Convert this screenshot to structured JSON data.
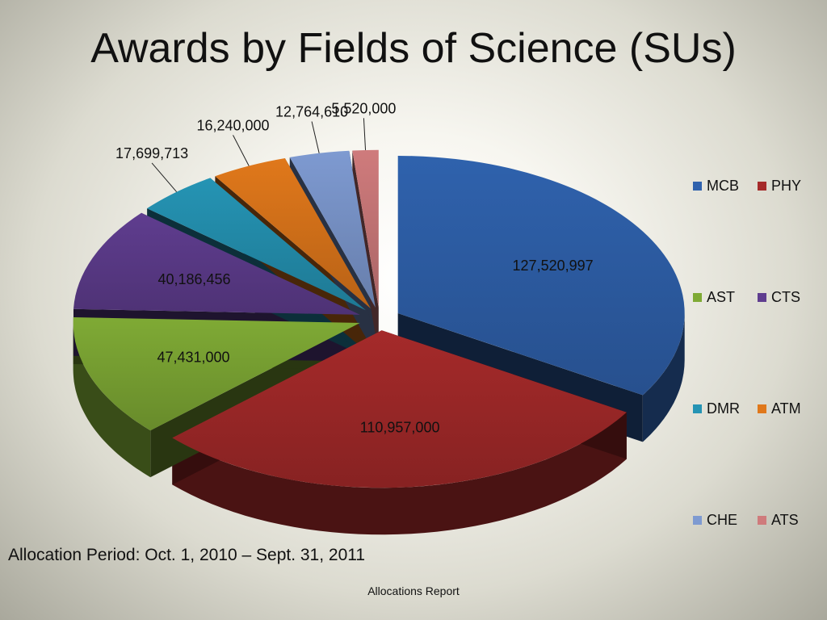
{
  "slide": {
    "title": "Awards by Fields of Science (SUs)",
    "period": "Allocation Period: Oct. 1, 2010 – Sept. 31, 2011",
    "footer": "Allocations Report"
  },
  "chart_data": {
    "type": "pie",
    "title": "Awards by Fields of Science (SUs)",
    "exploded": true,
    "three_d": true,
    "legend_position": "right",
    "categories": [
      "MCB",
      "PHY",
      "AST",
      "CTS",
      "DMR",
      "ATM",
      "CHE",
      "ATS"
    ],
    "values": [
      127520997,
      110957000,
      47431000,
      40186456,
      17699713,
      16240000,
      12764610,
      5520000
    ],
    "labels": [
      "127,520,997",
      "110,957,000",
      "47,431,000",
      "40,186,456",
      "17,699,713",
      "16,240,000",
      "12,764,610",
      "5,520,000"
    ],
    "colors": [
      "#2f62ad",
      "#a52a2a",
      "#7faa35",
      "#5f3d8f",
      "#2594b4",
      "#e0781b",
      "#7e9ad1",
      "#cf7b7c"
    ]
  }
}
